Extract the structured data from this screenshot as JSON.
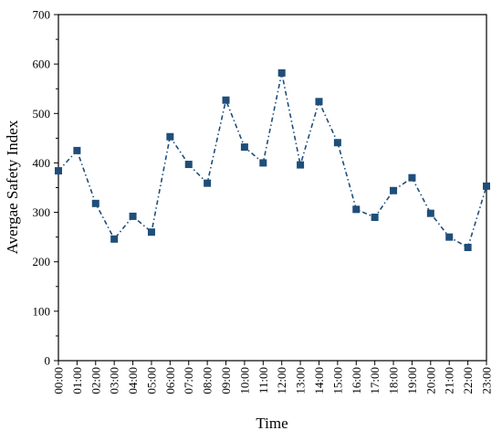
{
  "chart_data": {
    "type": "line",
    "xlabel": "Time",
    "ylabel": "Avergae Safety Index",
    "ylim": [
      0,
      700
    ],
    "yticks": [
      0,
      100,
      200,
      300,
      400,
      500,
      600,
      700
    ],
    "categories": [
      "00:00",
      "01:00",
      "02:00",
      "03:00",
      "04:00",
      "05:00",
      "06:00",
      "07:00",
      "08:00",
      "09:00",
      "10:00",
      "11:00",
      "12:00",
      "13:00",
      "14:00",
      "15:00",
      "16:00",
      "17:00",
      "18:00",
      "19:00",
      "20:00",
      "21:00",
      "22:00",
      "23:00"
    ],
    "series": [
      {
        "values": [
          384,
          425,
          318,
          246,
          292,
          260,
          453,
          397,
          359,
          527,
          432,
          400,
          582,
          396,
          524,
          441,
          306,
          290,
          344,
          370,
          298,
          250,
          229,
          353
        ],
        "color": "#1f4e79",
        "line_style": "dash-dot",
        "marker": "square"
      }
    ],
    "grid": false,
    "legend": "none"
  }
}
